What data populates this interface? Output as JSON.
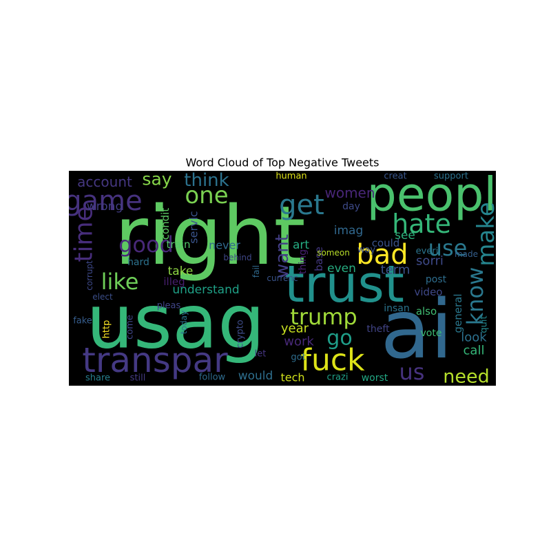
{
  "chart_data": {
    "type": "wordcloud",
    "title": "Word Cloud of Top Negative Tweets",
    "background": "#000000",
    "words": [
      {
        "text": "right",
        "weight": 118,
        "color": "#5ec962"
      },
      {
        "text": "usag",
        "weight": 108,
        "color": "#35b779"
      },
      {
        "text": "ai",
        "weight": 118,
        "color": "#31688e"
      },
      {
        "text": "trust",
        "weight": 74,
        "color": "#21918c"
      },
      {
        "text": "peopl",
        "weight": 68,
        "color": "#4ac16d"
      },
      {
        "text": "transpar",
        "weight": 50,
        "color": "#443983"
      },
      {
        "text": "fuck",
        "weight": 44,
        "color": "#dde318"
      },
      {
        "text": "bad",
        "weight": 40,
        "color": "#fde725"
      },
      {
        "text": "hate",
        "weight": 38,
        "color": "#35b779"
      },
      {
        "text": "get",
        "weight": 40,
        "color": "#2a788e"
      },
      {
        "text": "game",
        "weight": 40,
        "color": "#46327e"
      },
      {
        "text": "time",
        "weight": 36,
        "color": "#472d7b"
      },
      {
        "text": "good",
        "weight": 32,
        "color": "#482878"
      },
      {
        "text": "one",
        "weight": 34,
        "color": "#7ad151"
      },
      {
        "text": "think",
        "weight": 26,
        "color": "#2c728e"
      },
      {
        "text": "say",
        "weight": 25,
        "color": "#86d549"
      },
      {
        "text": "like",
        "weight": 32,
        "color": "#6ece58"
      },
      {
        "text": "make",
        "weight": 34,
        "color": "#25858e"
      },
      {
        "text": "know",
        "weight": 32,
        "color": "#2a788e"
      },
      {
        "text": "use",
        "weight": 32,
        "color": "#2a788e"
      },
      {
        "text": "trump",
        "weight": 32,
        "color": "#a0da39"
      },
      {
        "text": "us",
        "weight": 32,
        "color": "#46327e"
      },
      {
        "text": "need",
        "weight": 27,
        "color": "#b5de2b"
      },
      {
        "text": "go",
        "weight": 30,
        "color": "#1f9e89"
      },
      {
        "text": "want",
        "weight": 26,
        "color": "#433e85"
      },
      {
        "text": "account",
        "weight": 20,
        "color": "#453781"
      },
      {
        "text": "women",
        "weight": 20,
        "color": "#482677"
      },
      {
        "text": "sorri",
        "weight": 18,
        "color": "#3e4a89"
      },
      {
        "text": "term",
        "weight": 18,
        "color": "#3b528b"
      },
      {
        "text": "see",
        "weight": 17,
        "color": "#2db27d"
      },
      {
        "text": "even",
        "weight": 17,
        "color": "#27ad81"
      },
      {
        "text": "art",
        "weight": 17,
        "color": "#25ac82"
      },
      {
        "text": "imag",
        "weight": 17,
        "color": "#31688e"
      },
      {
        "text": "understand",
        "weight": 17,
        "color": "#1fa187"
      },
      {
        "text": "take",
        "weight": 17,
        "color": "#8fd744"
      },
      {
        "text": "never",
        "weight": 16,
        "color": "#306a8e"
      },
      {
        "text": "train",
        "weight": 15,
        "color": "#52c569"
      },
      {
        "text": "servic",
        "weight": 16,
        "color": "#3a548c"
      },
      {
        "text": "year",
        "weight": 18,
        "color": "#c8e020"
      },
      {
        "text": "work",
        "weight": 18,
        "color": "#482979"
      },
      {
        "text": "would",
        "weight": 17,
        "color": "#2e6f8e"
      },
      {
        "text": "tech",
        "weight": 16,
        "color": "#d2e21b"
      },
      {
        "text": "crazi",
        "weight": 13,
        "color": "#1fa088"
      },
      {
        "text": "worst",
        "weight": 14,
        "color": "#22a884"
      },
      {
        "text": "call",
        "weight": 18,
        "color": "#35b779"
      },
      {
        "text": "look",
        "weight": 18,
        "color": "#2c718e"
      },
      {
        "text": "general",
        "weight": 15,
        "color": "#2a788e"
      },
      {
        "text": "video",
        "weight": 15,
        "color": "#3f4889"
      },
      {
        "text": "also",
        "weight": 15,
        "color": "#40bd72"
      },
      {
        "text": "vote",
        "weight": 14,
        "color": "#3dbc74"
      },
      {
        "text": "post",
        "weight": 14,
        "color": "#2e6e8e"
      },
      {
        "text": "insan",
        "weight": 14,
        "color": "#2b748e"
      },
      {
        "text": "theft",
        "weight": 14,
        "color": "#414487"
      },
      {
        "text": "crypto",
        "weight": 13,
        "color": "#3e4c8a"
      },
      {
        "text": "http",
        "weight": 13,
        "color": "#fde725"
      },
      {
        "text": "fake",
        "weight": 13,
        "color": "#365d8d"
      },
      {
        "text": "hard",
        "weight": 14,
        "color": "#2c728e"
      },
      {
        "text": "corrupt",
        "weight": 12,
        "color": "#3e4989"
      },
      {
        "text": "wrong",
        "weight": 17,
        "color": "#433d84"
      },
      {
        "text": "condit",
        "weight": 15,
        "color": "#5cc863"
      },
      {
        "text": "illeg",
        "weight": 15,
        "color": "#481f70"
      },
      {
        "text": "pleas",
        "weight": 13,
        "color": "#404688"
      },
      {
        "text": "today",
        "weight": 12,
        "color": "#2b758e"
      },
      {
        "text": "come",
        "weight": 13,
        "color": "#3f4788"
      },
      {
        "text": "share",
        "weight": 13,
        "color": "#277f8e"
      },
      {
        "text": "still",
        "weight": 13,
        "color": "#443a83"
      },
      {
        "text": "follow",
        "weight": 13,
        "color": "#2f6c8e"
      },
      {
        "text": "let",
        "weight": 13,
        "color": "#453581"
      },
      {
        "text": "got",
        "weight": 13,
        "color": "#2e6d8e"
      },
      {
        "text": "day",
        "weight": 14,
        "color": "#3e4a89"
      },
      {
        "text": "human",
        "weight": 13,
        "color": "#dfe318"
      },
      {
        "text": "creat",
        "weight": 13,
        "color": "#39568c"
      },
      {
        "text": "support",
        "weight": 13,
        "color": "#2c728e"
      },
      {
        "text": "way",
        "weight": 13,
        "color": "#3b528b"
      },
      {
        "text": "thing",
        "weight": 14,
        "color": "#482173"
      },
      {
        "text": "base",
        "weight": 15,
        "color": "#443983"
      },
      {
        "text": "made",
        "weight": 12,
        "color": "#355f8d"
      },
      {
        "text": "everi",
        "weight": 13,
        "color": "#2b748e"
      },
      {
        "text": "quit",
        "weight": 13,
        "color": "#23888e"
      },
      {
        "text": "behind",
        "weight": 12,
        "color": "#3f4788"
      },
      {
        "text": "could",
        "weight": 15,
        "color": "#3a538b"
      },
      {
        "text": "someon",
        "weight": 12,
        "color": "#b8de29"
      },
      {
        "text": "fail",
        "weight": 12,
        "color": "#306a8e"
      },
      {
        "text": "elect",
        "weight": 12,
        "color": "#3c4f8a"
      },
      {
        "text": "currenc",
        "weight": 12,
        "color": "#3a548c"
      }
    ]
  }
}
